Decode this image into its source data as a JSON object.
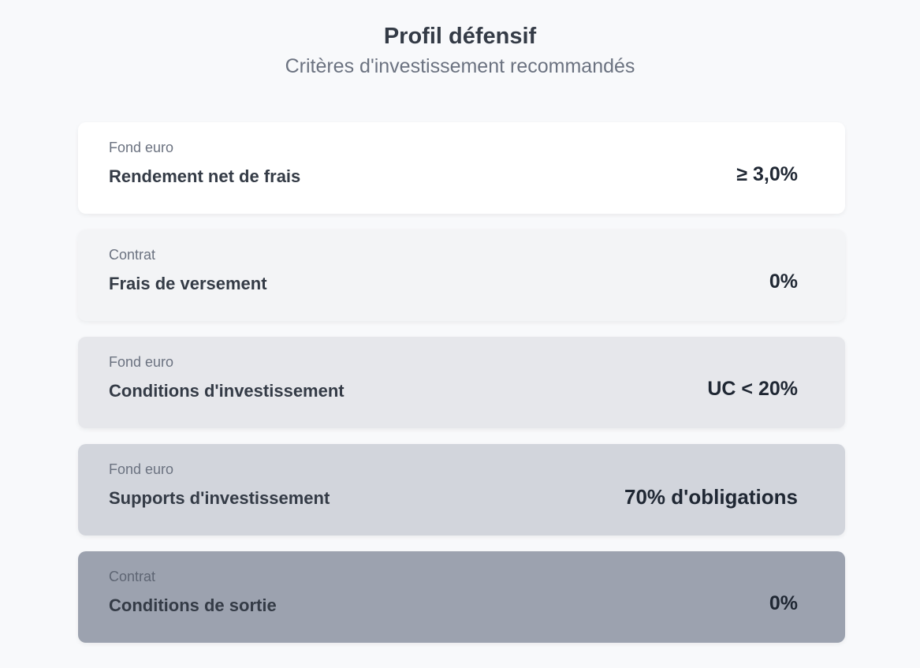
{
  "header": {
    "title": "Profil défensif",
    "subtitle": "Critères d'investissement recommandés"
  },
  "cards": [
    {
      "category": "Fond euro",
      "label": "Rendement net de frais",
      "value": "≥ 3,0%",
      "background": "#ffffff"
    },
    {
      "category": "Contrat",
      "label": "Frais de versement",
      "value": "0%",
      "background": "#f3f4f6"
    },
    {
      "category": "Fond euro",
      "label": "Conditions d'investissement",
      "value": "UC < 20%",
      "background": "#e6e7eb"
    },
    {
      "category": "Fond euro",
      "label": "Supports d'investissement",
      "value": "70% d'obligations",
      "background": "#d2d5dc"
    },
    {
      "category": "Contrat",
      "label": "Conditions de sortie",
      "value": "0%",
      "background": "#9ca2af"
    }
  ]
}
